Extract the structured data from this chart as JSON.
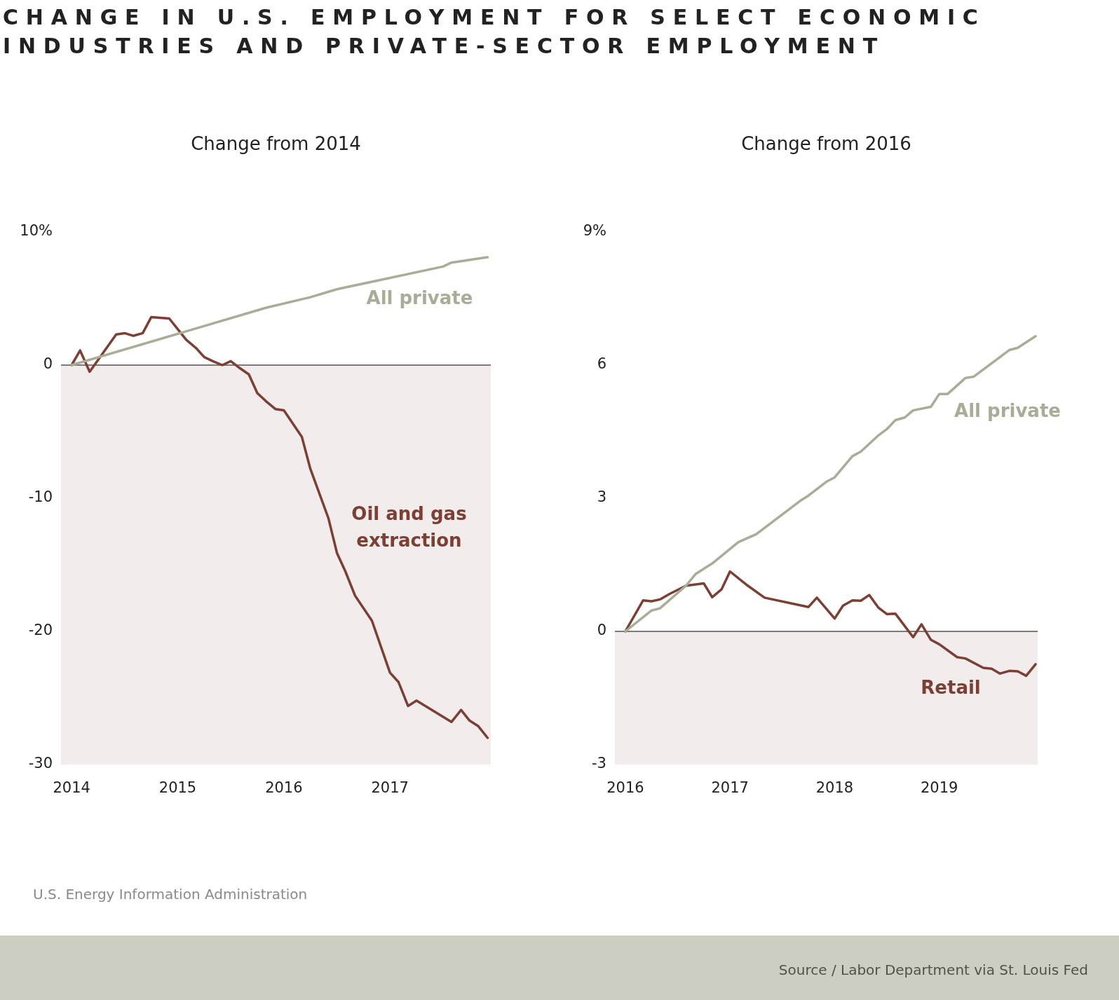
{
  "chart_data": [
    {
      "type": "line",
      "title": "CHANGE IN U.S. EMPLOYMENT FOR SELECT ECONOMIC INDUSTRIES AND PRIVATE-SECTOR EMPLOYMENT",
      "subtitle": "Change from 2014",
      "series": [
        {
          "name": "All private",
          "color": "#a9ad98",
          "x": [
            2014,
            2015.83,
            2016.25,
            2016.5,
            2017.5,
            2017.58,
            2017.92
          ],
          "values": [
            0,
            4.3,
            5.1,
            5.7,
            7.4,
            7.7,
            8.1
          ]
        },
        {
          "name": "Oil and gas extraction",
          "color": "#7b3f33",
          "x": [
            2014,
            2014.08,
            2014.17,
            2014.42,
            2014.5,
            2014.58,
            2014.67,
            2014.75,
            2014.92,
            2015.08,
            2015.17,
            2015.25,
            2015.33,
            2015.42,
            2015.5,
            2015.58,
            2015.67,
            2015.75,
            2015.83,
            2015.92,
            2016,
            2016.17,
            2016.25,
            2016.42,
            2016.5,
            2016.58,
            2016.67,
            2016.83,
            2017,
            2017.08,
            2017.17,
            2017.25,
            2017.58,
            2017.67,
            2017.75,
            2017.83,
            2017.92
          ],
          "values": [
            0,
            1.1,
            -0.5,
            2.3,
            2.4,
            2.2,
            2.4,
            3.6,
            3.5,
            1.9,
            1.3,
            0.6,
            0.3,
            0,
            0.3,
            -0.2,
            -0.7,
            -2.1,
            -2.7,
            -3.3,
            -3.4,
            -5.4,
            -7.8,
            -11.5,
            -14.1,
            -15.5,
            -17.3,
            -19.2,
            -23.1,
            -23.8,
            -25.6,
            -25.2,
            -26.8,
            -25.9,
            -26.7,
            -27.1,
            -28
          ]
        }
      ],
      "xlim": [
        2013.9,
        2017.95
      ],
      "xticks": [
        2014,
        2015,
        2016,
        2017
      ],
      "ylim": [
        -30,
        10
      ],
      "yticks": [
        {
          "value": 10,
          "label": "10%"
        },
        0,
        -10,
        -20,
        -30
      ],
      "ref_lines": [
        {
          "axis": "y",
          "value": 0,
          "color": "#000000"
        }
      ],
      "bands": [
        {
          "axis": "y",
          "from": -30,
          "to": 0,
          "color": "#f2ecec"
        }
      ],
      "legend": false,
      "grid": false,
      "annotations": [
        "U.S. Energy Information Administration"
      ]
    },
    {
      "type": "line",
      "subtitle": "Change from 2016",
      "series": [
        {
          "name": "All private",
          "color": "#a9ad98",
          "x": [
            2016,
            2016.25,
            2016.33,
            2016.58,
            2016.67,
            2016.83,
            2017.08,
            2017.25,
            2017.67,
            2017.75,
            2017.92,
            2018,
            2018.17,
            2018.25,
            2018.42,
            2018.5,
            2018.58,
            2018.67,
            2018.75,
            2018.92,
            2019,
            2019.08,
            2019.25,
            2019.33,
            2019.67,
            2019.75,
            2019.92
          ],
          "values": [
            0,
            0.47,
            0.52,
            1.03,
            1.29,
            1.53,
            2.01,
            2.19,
            2.94,
            3.06,
            3.37,
            3.47,
            3.95,
            4.05,
            4.42,
            4.56,
            4.76,
            4.82,
            4.98,
            5.06,
            5.35,
            5.35,
            5.71,
            5.74,
            6.34,
            6.39,
            6.65
          ]
        },
        {
          "name": "Retail",
          "color": "#7b3f33",
          "x": [
            2016,
            2016.17,
            2016.25,
            2016.33,
            2016.42,
            2016.58,
            2016.75,
            2016.83,
            2016.92,
            2017,
            2017.17,
            2017.33,
            2017.75,
            2017.83,
            2018,
            2018.08,
            2018.17,
            2018.25,
            2018.33,
            2018.42,
            2018.5,
            2018.58,
            2018.75,
            2018.83,
            2018.92,
            2019,
            2019.17,
            2019.25,
            2019.42,
            2019.5,
            2019.58,
            2019.67,
            2019.75,
            2019.83,
            2019.92
          ],
          "values": [
            0,
            0.7,
            0.68,
            0.72,
            0.84,
            1.03,
            1.08,
            0.77,
            0.95,
            1.35,
            1.03,
            0.76,
            0.55,
            0.76,
            0.29,
            0.58,
            0.7,
            0.69,
            0.82,
            0.53,
            0.39,
            0.4,
            -0.13,
            0.16,
            -0.19,
            -0.29,
            -0.58,
            -0.61,
            -0.82,
            -0.84,
            -0.95,
            -0.89,
            -0.9,
            -1,
            -0.74
          ]
        }
      ],
      "xlim": [
        2015.9,
        2019.94
      ],
      "xticks": [
        2016,
        2017,
        2018,
        2019
      ],
      "ylim": [
        -3,
        9
      ],
      "yticks": [
        {
          "value": 9,
          "label": "9%"
        },
        6,
        3,
        0,
        -3
      ],
      "ref_lines": [
        {
          "axis": "y",
          "value": 0,
          "color": "#000000"
        }
      ],
      "bands": [
        {
          "axis": "y",
          "from": -3,
          "to": 0,
          "color": "#f2ecec"
        }
      ],
      "legend": false,
      "grid": false,
      "annotations": [
        "Source / Labor Department via St. Louis Fed"
      ]
    }
  ]
}
